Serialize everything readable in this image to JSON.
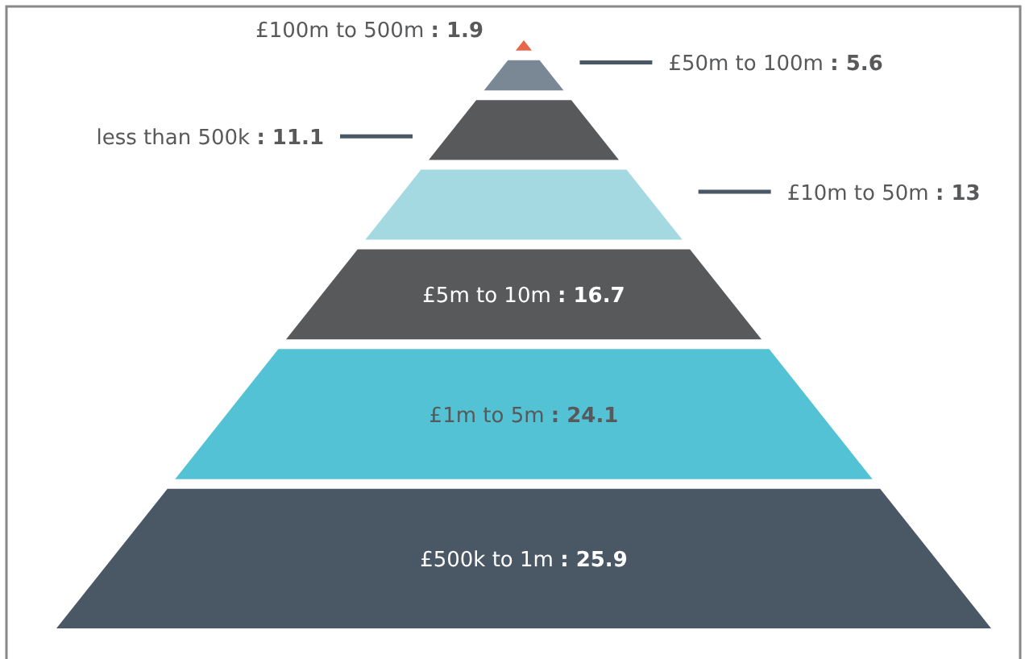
{
  "chart_data": {
    "type": "other",
    "categories": [
      "£100m to 500m",
      "£50m to 100m",
      "less than 500k",
      "£10m to 50m",
      "£5m to 10m",
      "£1m to 5m",
      "£500k to 1m"
    ],
    "values": [
      1.9,
      5.6,
      11.1,
      13,
      16.7,
      24.1,
      25.9
    ],
    "value_labels": [
      ": 1.9",
      ": 5.6",
      ": 11.1",
      ": 13",
      ": 16.7",
      ": 24.1",
      ": 25.9"
    ],
    "colors": [
      "#e8664a",
      "#7a8896",
      "#58595b",
      "#a5d9e2",
      "#58595b",
      "#52c2d4",
      "#4a5764"
    ]
  }
}
